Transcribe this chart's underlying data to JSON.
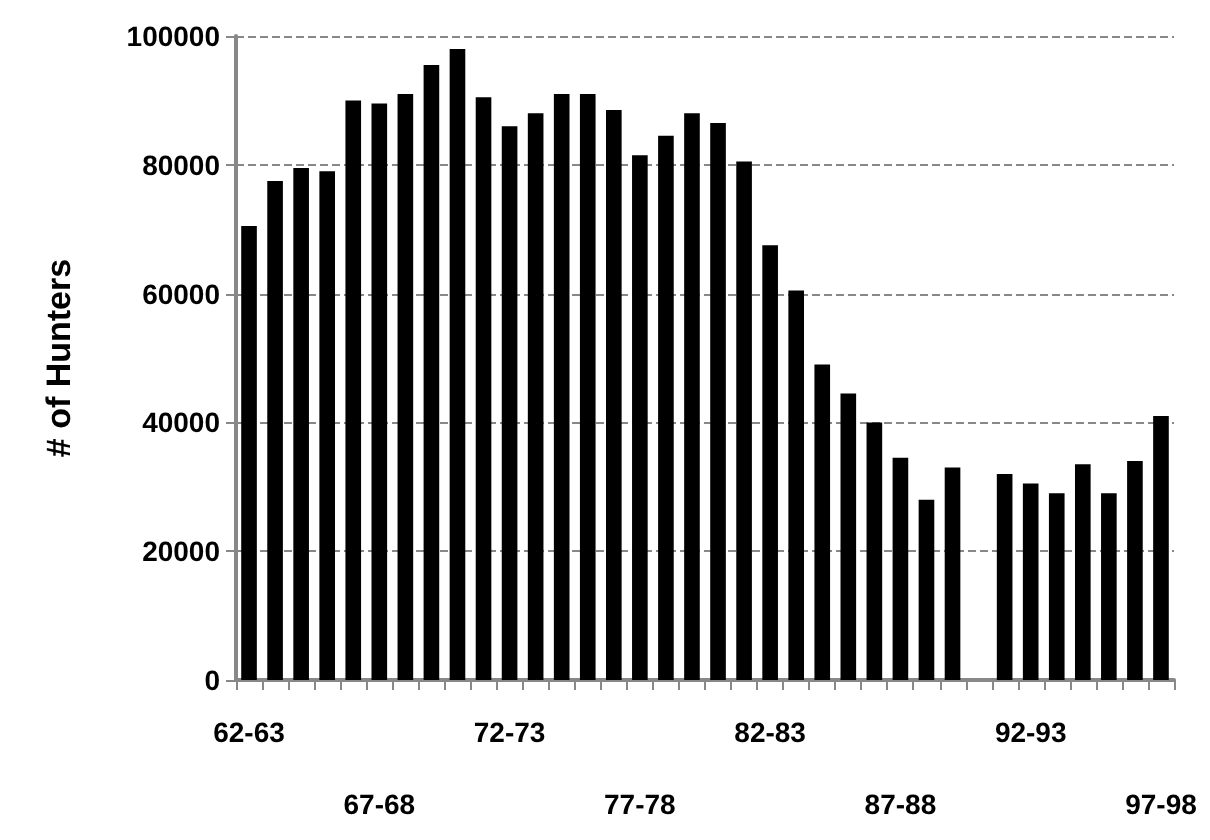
{
  "chart_data": {
    "type": "bar",
    "ylabel": "# of Hunters",
    "categories": [
      "62-63",
      null,
      null,
      null,
      null,
      "67-68",
      null,
      null,
      null,
      null,
      "72-73",
      null,
      null,
      null,
      null,
      "77-78",
      null,
      null,
      null,
      null,
      "82-83",
      null,
      null,
      null,
      null,
      "87-88",
      null,
      null,
      null,
      null,
      "92-93",
      null,
      null,
      null,
      null,
      "97-98"
    ],
    "values": [
      70500,
      77500,
      79500,
      79000,
      90000,
      89500,
      91000,
      95500,
      98000,
      90500,
      86000,
      88000,
      91000,
      91000,
      88500,
      81500,
      84500,
      88000,
      86500,
      80500,
      67500,
      60500,
      49000,
      44500,
      40000,
      34500,
      28000,
      33000,
      null,
      32000,
      30500,
      29000,
      33500,
      29000,
      34000,
      41000
    ],
    "color": "#000000",
    "ylim": [
      0,
      100000
    ],
    "yticks": [
      0,
      20000,
      40000,
      60000,
      80000,
      100000
    ],
    "grid": "y",
    "line_style": "dashed"
  }
}
